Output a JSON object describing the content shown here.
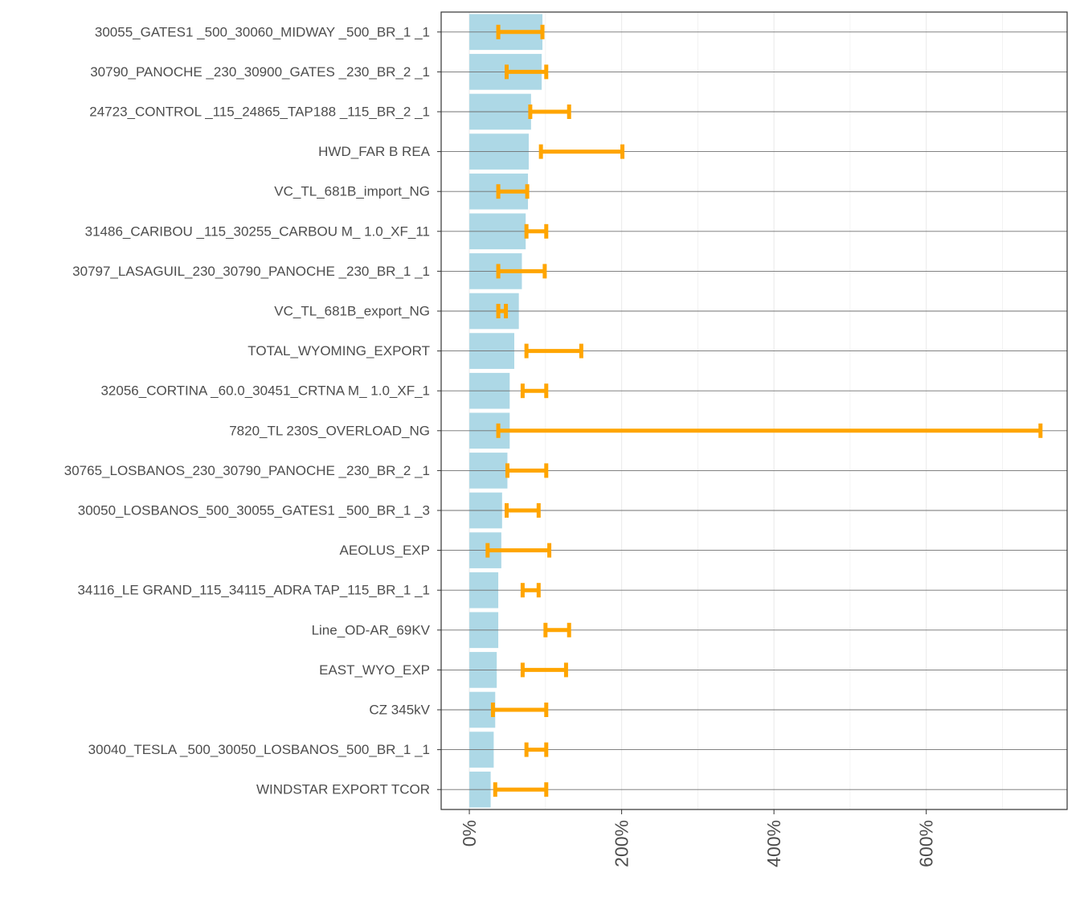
{
  "chart_data": {
    "type": "bar",
    "orientation": "horizontal",
    "categories": [
      "30055_GATES1  _500_30060_MIDWAY  _500_BR_1 _1",
      "30790_PANOCHE _230_30900_GATES   _230_BR_2 _1",
      "24723_CONTROL _115_24865_TAP188  _115_BR_2 _1",
      "HWD_FAR B REA",
      "VC_TL_681B_import_NG",
      "31486_CARIBOU _115_30255_CARBOU M_ 1.0_XF_11",
      "30797_LASAGUIL_230_30790_PANOCHE _230_BR_1 _1",
      "VC_TL_681B_export_NG",
      "TOTAL_WYOMING_EXPORT",
      "32056_CORTINA _60.0_30451_CRTNA  M_ 1.0_XF_1",
      "7820_TL 230S_OVERLOAD_NG",
      "30765_LOSBANOS_230_30790_PANOCHE _230_BR_2 _1",
      "30050_LOSBANOS_500_30055_GATES1  _500_BR_1 _3",
      "AEOLUS_EXP",
      "34116_LE GRAND_115_34115_ADRA TAP_115_BR_1 _1",
      "Line_OD-AR_69KV",
      "EAST_WYO_EXP",
      "CZ 345kV",
      "30040_TESLA   _500_30050_LOSBANOS_500_BR_1 _1",
      "WINDSTAR EXPORT TCOR"
    ],
    "series": [
      {
        "values": [
          96,
          95,
          81,
          78,
          77,
          74,
          69,
          65,
          59,
          53,
          53,
          50,
          43,
          42,
          38,
          38,
          36,
          34,
          32,
          28
        ]
      },
      {
        "type": "errorbar",
        "low": [
          38,
          49,
          80,
          94,
          38,
          75,
          38,
          38,
          75,
          70,
          38,
          50,
          49,
          24,
          70,
          100,
          70,
          31,
          75,
          34
        ],
        "high": [
          96,
          101,
          131,
          201,
          76,
          101,
          99,
          48,
          147,
          101,
          750,
          101,
          91,
          105,
          91,
          131,
          127,
          101,
          101,
          101
        ]
      }
    ],
    "xlim": [
      -37,
      785
    ],
    "xticks": [
      0,
      200,
      400,
      600
    ],
    "xtick_labels": [
      "0%",
      "200%",
      "400%",
      "600%"
    ],
    "grid": true,
    "colors": {
      "bar": "#add8e6",
      "errorbar": "#ffa500",
      "rowline": "#707070",
      "gridline": "#ebebeb",
      "axis": "#333333"
    }
  }
}
